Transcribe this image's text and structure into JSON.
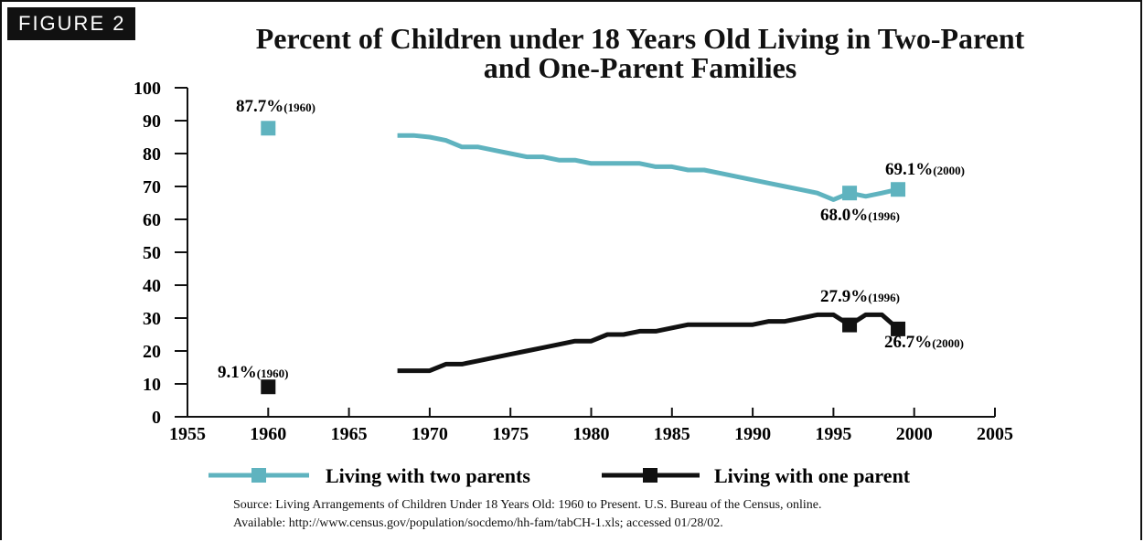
{
  "figure_label": "Figure 2",
  "figure_label_display": "FIGURE 2",
  "title_line1": "Percent of Children under 18 Years Old Living in Two-Parent",
  "title_line2": "and One-Parent Families",
  "source_line1": "Source:  Living Arrangements of Children Under 18 Years Old: 1960 to Present. U.S. Bureau of the Census, online.",
  "source_line2": "Available: http://www.census.gov/population/socdemo/hh-fam/tabCH-1.xls; accessed 01/28/02.",
  "colors": {
    "two_parents": "#5fb3bf",
    "one_parent": "#111111"
  },
  "chart_data": {
    "type": "line",
    "xlim": [
      1955,
      2005
    ],
    "ylim": [
      0,
      100
    ],
    "x_ticks": [
      1955,
      1960,
      1965,
      1970,
      1975,
      1980,
      1985,
      1990,
      1995,
      2000,
      2005
    ],
    "y_ticks": [
      0,
      10,
      20,
      30,
      40,
      50,
      60,
      70,
      80,
      90,
      100
    ],
    "grid": false,
    "legend_position": "bottom",
    "series": [
      {
        "name": "Living with two parents",
        "color": "#5fb3bf",
        "isolated_point": {
          "x": 1960,
          "y": 87.7
        },
        "points": [
          [
            1968,
            85.5
          ],
          [
            1969,
            85.5
          ],
          [
            1970,
            85
          ],
          [
            1971,
            84
          ],
          [
            1972,
            82
          ],
          [
            1973,
            82
          ],
          [
            1974,
            81
          ],
          [
            1975,
            80
          ],
          [
            1976,
            79
          ],
          [
            1977,
            79
          ],
          [
            1978,
            78
          ],
          [
            1979,
            78
          ],
          [
            1980,
            77
          ],
          [
            1981,
            77
          ],
          [
            1982,
            77
          ],
          [
            1983,
            77
          ],
          [
            1984,
            76
          ],
          [
            1985,
            76
          ],
          [
            1986,
            75
          ],
          [
            1987,
            75
          ],
          [
            1988,
            74
          ],
          [
            1989,
            73
          ],
          [
            1990,
            72
          ],
          [
            1991,
            71
          ],
          [
            1992,
            70
          ],
          [
            1993,
            69
          ],
          [
            1994,
            68
          ],
          [
            1995,
            66
          ],
          [
            1996,
            68.0
          ],
          [
            1997,
            67
          ],
          [
            1998,
            68
          ],
          [
            1999,
            69.1
          ]
        ],
        "markers": [
          {
            "x": 1996,
            "y": 68.0
          },
          {
            "x": 1999,
            "y": 69.1
          }
        ]
      },
      {
        "name": "Living with one parent",
        "color": "#111111",
        "isolated_point": {
          "x": 1960,
          "y": 9.1
        },
        "points": [
          [
            1968,
            14
          ],
          [
            1969,
            14
          ],
          [
            1970,
            14
          ],
          [
            1971,
            16
          ],
          [
            1972,
            16
          ],
          [
            1973,
            17
          ],
          [
            1974,
            18
          ],
          [
            1975,
            19
          ],
          [
            1976,
            20
          ],
          [
            1977,
            21
          ],
          [
            1978,
            22
          ],
          [
            1979,
            23
          ],
          [
            1980,
            23
          ],
          [
            1981,
            25
          ],
          [
            1982,
            25
          ],
          [
            1983,
            26
          ],
          [
            1984,
            26
          ],
          [
            1985,
            27
          ],
          [
            1986,
            28
          ],
          [
            1987,
            28
          ],
          [
            1988,
            28
          ],
          [
            1989,
            28
          ],
          [
            1990,
            28
          ],
          [
            1991,
            29
          ],
          [
            1992,
            29
          ],
          [
            1993,
            30
          ],
          [
            1994,
            31
          ],
          [
            1995,
            31
          ],
          [
            1996,
            27.9
          ],
          [
            1997,
            31
          ],
          [
            1998,
            31
          ],
          [
            1999,
            26.7
          ]
        ],
        "markers": [
          {
            "x": 1996,
            "y": 27.9
          },
          {
            "x": 1999,
            "y": 26.7
          }
        ]
      }
    ],
    "annotations": [
      {
        "value": "87.7%",
        "year_label": "(1960)"
      },
      {
        "value": "9.1%",
        "year_label": "(1960)"
      },
      {
        "value": "69.1%",
        "year_label": "(2000)"
      },
      {
        "value": "68.0%",
        "year_label": "(1996)"
      },
      {
        "value": "27.9%",
        "year_label": "(1996)"
      },
      {
        "value": "26.7%",
        "year_label": "(2000)"
      }
    ]
  }
}
